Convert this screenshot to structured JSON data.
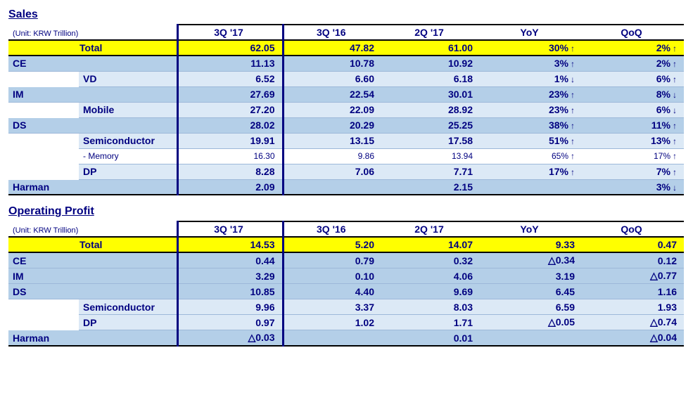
{
  "sales": {
    "title": "Sales",
    "unit": "(Unit: KRW Trillion)",
    "columns": {
      "hl": "3Q '17",
      "c1": "3Q '16",
      "c2": "2Q '17",
      "yoy": "YoY",
      "qoq": "QoQ"
    },
    "rows": [
      {
        "style": "total",
        "label": "Total",
        "indent": 0,
        "hl": "62.05",
        "c1": "47.82",
        "c2": "61.00",
        "yoy": "30%",
        "yoyDir": "↑",
        "qoq": "2%",
        "qoqDir": "↑"
      },
      {
        "style": "dark",
        "label": "CE",
        "indent": 0,
        "hl": "11.13",
        "c1": "10.78",
        "c2": "10.92",
        "yoy": "3%",
        "yoyDir": "↑",
        "qoq": "2%",
        "qoqDir": "↑"
      },
      {
        "style": "light",
        "label": "VD",
        "indent": 1,
        "hl": "6.52",
        "c1": "6.60",
        "c2": "6.18",
        "yoy": "1%",
        "yoyDir": "↓",
        "qoq": "6%",
        "qoqDir": "↑"
      },
      {
        "style": "dark",
        "label": "IM",
        "indent": 0,
        "hl": "27.69",
        "c1": "22.54",
        "c2": "30.01",
        "yoy": "23%",
        "yoyDir": "↑",
        "qoq": "8%",
        "qoqDir": "↓"
      },
      {
        "style": "light",
        "label": "Mobile",
        "indent": 1,
        "hl": "27.20",
        "c1": "22.09",
        "c2": "28.92",
        "yoy": "23%",
        "yoyDir": "↑",
        "qoq": "6%",
        "qoqDir": "↓"
      },
      {
        "style": "dark",
        "label": "DS",
        "indent": 0,
        "hl": "28.02",
        "c1": "20.29",
        "c2": "25.25",
        "yoy": "38%",
        "yoyDir": "↑",
        "qoq": "11%",
        "qoqDir": "↑"
      },
      {
        "style": "light",
        "label": "Semiconductor",
        "indent": 1,
        "hl": "19.91",
        "c1": "13.15",
        "c2": "17.58",
        "yoy": "51%",
        "yoyDir": "↑",
        "qoq": "13%",
        "qoqDir": "↑"
      },
      {
        "style": "sub",
        "label": "- Memory",
        "indent": 2,
        "hl": "16.30",
        "c1": "9.86",
        "c2": "13.94",
        "yoy": "65%",
        "yoyDir": "↑",
        "qoq": "17%",
        "qoqDir": "↑"
      },
      {
        "style": "light",
        "label": "DP",
        "indent": 1,
        "hl": "8.28",
        "c1": "7.06",
        "c2": "7.71",
        "yoy": "17%",
        "yoyDir": "↑",
        "qoq": "7%",
        "qoqDir": "↑"
      },
      {
        "style": "dark",
        "label": "Harman",
        "indent": 0,
        "hl": "2.09",
        "c1": "",
        "c2": "2.15",
        "yoy": "",
        "yoyDir": "",
        "qoq": "3%",
        "qoqDir": "↓",
        "last": true
      }
    ]
  },
  "op": {
    "title": "Operating Profit",
    "unit": "(Unit: KRW Trillion)",
    "columns": {
      "hl": "3Q '17",
      "c1": "3Q '16",
      "c2": "2Q '17",
      "yoy": "YoY",
      "qoq": "QoQ"
    },
    "rows": [
      {
        "style": "total",
        "label": "Total",
        "indent": 0,
        "hl": "14.53",
        "c1": "5.20",
        "c2": "14.07",
        "yoy": "9.33",
        "qoq": "0.47"
      },
      {
        "style": "dark",
        "label": "CE",
        "indent": 0,
        "hl": "0.44",
        "c1": "0.79",
        "c2": "0.32",
        "yoy": "△0.34",
        "qoq": "0.12"
      },
      {
        "style": "dark",
        "label": "IM",
        "indent": 0,
        "hl": "3.29",
        "c1": "0.10",
        "c2": "4.06",
        "yoy": "3.19",
        "qoq": "△0.77"
      },
      {
        "style": "dark",
        "label": "DS",
        "indent": 0,
        "hl": "10.85",
        "c1": "4.40",
        "c2": "9.69",
        "yoy": "6.45",
        "qoq": "1.16"
      },
      {
        "style": "light",
        "label": "Semiconductor",
        "indent": 1,
        "hl": "9.96",
        "c1": "3.37",
        "c2": "8.03",
        "yoy": "6.59",
        "qoq": "1.93"
      },
      {
        "style": "light",
        "label": "DP",
        "indent": 1,
        "hl": "0.97",
        "c1": "1.02",
        "c2": "1.71",
        "yoy": "△0.05",
        "qoq": "△0.74"
      },
      {
        "style": "dark",
        "label": "Harman",
        "indent": 0,
        "hl": "△0.03",
        "c1": "",
        "c2": "0.01",
        "yoy": "",
        "qoq": "△0.04",
        "last": true
      }
    ]
  },
  "colors": {
    "navy": "#000080",
    "yellow": "#ffff00",
    "blueDark": "#b4cfe8",
    "blueLight": "#dce9f6",
    "border": "#9db8d9"
  }
}
